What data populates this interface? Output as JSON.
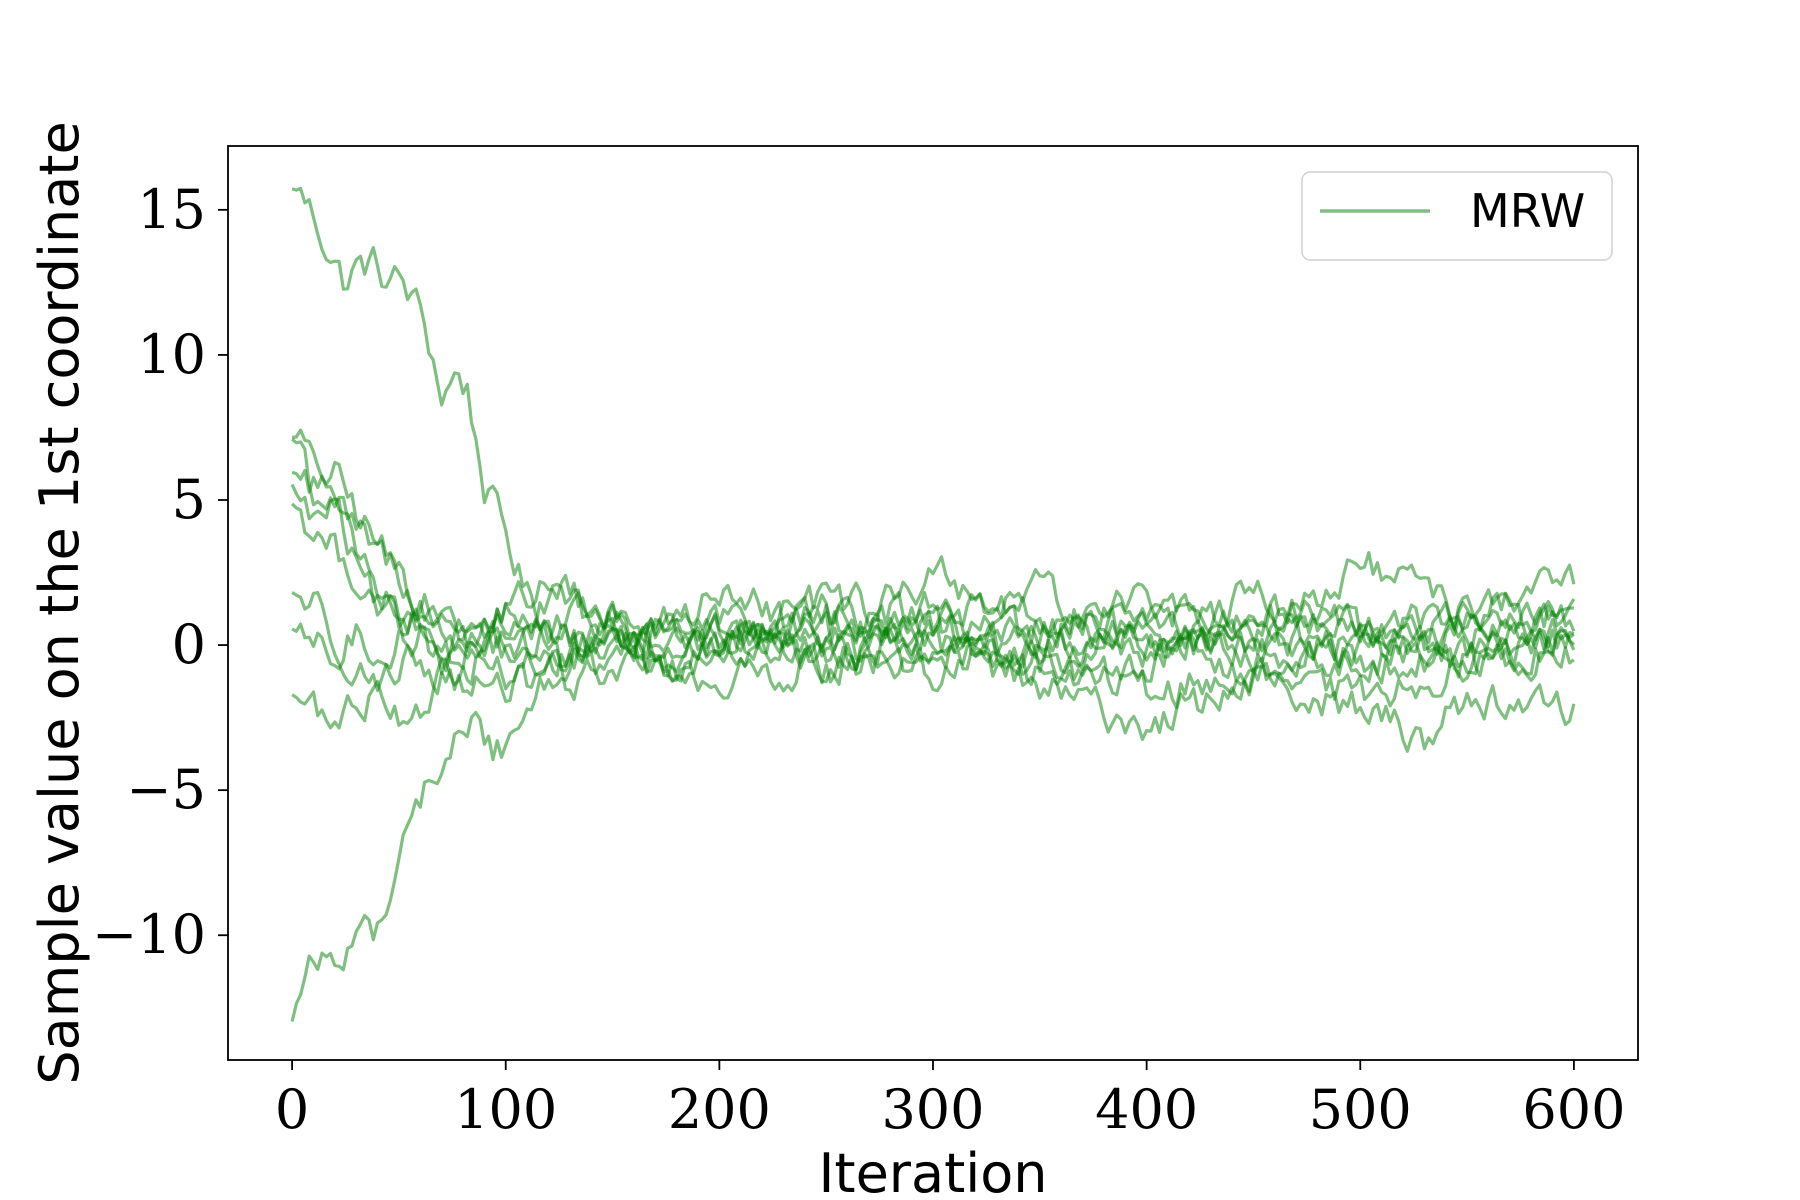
{
  "chart_data": {
    "type": "line",
    "title": "",
    "xlabel": "Iteration",
    "ylabel": "Sample value on the 1st coordinate",
    "xlim": [
      -30,
      630
    ],
    "ylim": [
      -14.3,
      17.2
    ],
    "xticks": [
      0,
      100,
      200,
      300,
      400,
      500,
      600
    ],
    "yticks": [
      -10,
      -5,
      0,
      5,
      10,
      15
    ],
    "xtick_labels": [
      "0",
      "100",
      "200",
      "300",
      "400",
      "500",
      "600"
    ],
    "ytick_labels": [
      "−10",
      "−5",
      "0",
      "5",
      "10",
      "15"
    ],
    "grid": false,
    "legend": {
      "position": "top-right",
      "entries": [
        "MRW"
      ]
    },
    "line_color": "#008000",
    "line_opacity": 0.5,
    "series_count": 10,
    "series": [
      {
        "start": 15.7,
        "x": [
          0,
          3,
          10,
          20,
          25,
          30,
          38,
          45,
          50,
          60,
          65,
          70,
          78,
          82,
          90,
          100,
          110,
          120,
          130,
          150,
          175,
          200,
          250,
          300,
          350,
          400,
          450,
          500,
          550,
          600
        ],
        "values": [
          15.7,
          15.7,
          14.8,
          13.2,
          12.4,
          13.0,
          13.1,
          12.5,
          12.6,
          11.5,
          10.2,
          8.6,
          9.4,
          8.8,
          5.5,
          3.8,
          1.7,
          0.9,
          -1.2,
          -0.8,
          0.6,
          0.2,
          1.0,
          -0.4,
          0.5,
          0.9,
          -0.2,
          0.1,
          -0.6,
          0.4
        ]
      },
      {
        "start": 7.2,
        "x": [
          0,
          5,
          10,
          20,
          30,
          40,
          50,
          60,
          70,
          80,
          100,
          120,
          150,
          175,
          200,
          250,
          300,
          350,
          400,
          450,
          500,
          550,
          600
        ],
        "values": [
          7.2,
          7.1,
          6.0,
          5.8,
          4.6,
          3.5,
          2.4,
          1.6,
          0.8,
          0.3,
          -0.2,
          -0.8,
          0.5,
          -1.0,
          0.2,
          -0.3,
          0.6,
          -0.7,
          0.4,
          -0.2,
          0.8,
          -0.5,
          0.1
        ]
      },
      {
        "start": 7.1,
        "x": [
          0,
          5,
          10,
          20,
          30,
          40,
          50,
          60,
          70,
          80,
          100,
          125,
          150,
          175,
          200,
          250,
          300,
          350,
          400,
          450,
          500,
          550,
          600
        ],
        "values": [
          7.1,
          6.8,
          5.2,
          5.0,
          3.8,
          3.1,
          2.6,
          1.2,
          0.4,
          -0.2,
          0.6,
          1.5,
          0.3,
          1.0,
          -0.4,
          0.7,
          1.2,
          1.8,
          0.1,
          1.2,
          0.3,
          0.8,
          2.3
        ]
      },
      {
        "start": 5.5,
        "x": [
          0,
          10,
          20,
          30,
          40,
          50,
          60,
          80,
          100,
          120,
          150,
          175,
          200,
          250,
          300,
          350,
          400,
          450,
          500,
          550,
          600
        ],
        "values": [
          5.5,
          4.2,
          4.8,
          2.5,
          1.3,
          0.5,
          -0.6,
          -1.2,
          -1.6,
          -1.0,
          0.2,
          -0.8,
          -1.2,
          -0.6,
          0.2,
          -1.5,
          -2.8,
          -1.2,
          -1.8,
          -0.6,
          -0.3
        ]
      },
      {
        "start": 4.9,
        "x": [
          0,
          10,
          20,
          30,
          40,
          50,
          60,
          70,
          80,
          100,
          125,
          150,
          175,
          200,
          250,
          300,
          350,
          400,
          450,
          500,
          530,
          550,
          600
        ],
        "values": [
          4.9,
          4.0,
          3.2,
          2.5,
          1.5,
          0.8,
          0.3,
          -0.3,
          -0.6,
          -1.0,
          0.6,
          1.2,
          -0.5,
          0.5,
          -1.0,
          -0.2,
          -0.5,
          -1.6,
          -1.0,
          -2.2,
          -3.2,
          -1.8,
          -2.2
        ]
      },
      {
        "start": 1.8,
        "x": [
          0,
          10,
          20,
          30,
          40,
          50,
          60,
          75,
          90,
          100,
          120,
          150,
          175,
          200,
          250,
          300,
          350,
          400,
          450,
          500,
          550,
          600
        ],
        "values": [
          1.8,
          1.5,
          0.3,
          -0.6,
          -1.5,
          0.5,
          1.0,
          0.2,
          0.6,
          1.0,
          0.4,
          -0.3,
          0.5,
          1.8,
          0.3,
          2.5,
          0.8,
          1.5,
          0.4,
          2.8,
          1.0,
          0.6
        ]
      },
      {
        "start": 0.5,
        "x": [
          0,
          10,
          20,
          30,
          40,
          50,
          60,
          75,
          100,
          125,
          150,
          175,
          200,
          250,
          300,
          350,
          400,
          450,
          500,
          550,
          600
        ],
        "values": [
          0.5,
          0.0,
          -0.5,
          0.3,
          -0.2,
          -0.6,
          0.1,
          -0.4,
          1.2,
          2.3,
          0.3,
          -0.6,
          0.4,
          1.1,
          0.2,
          -1.2,
          -0.5,
          0.8,
          -0.3,
          0.5,
          -0.1
        ]
      },
      {
        "start": -1.7,
        "x": [
          0,
          10,
          20,
          30,
          40,
          50,
          60,
          70,
          80,
          100,
          120,
          150,
          175,
          200,
          250,
          300,
          350,
          400,
          450,
          500,
          550,
          600
        ],
        "values": [
          -1.7,
          -2.2,
          -2.8,
          -2.0,
          -1.5,
          -2.2,
          -2.0,
          -1.3,
          -0.8,
          -0.2,
          0.5,
          -1.0,
          1.2,
          0.4,
          -0.6,
          0.4,
          -0.2,
          0.6,
          -1.0,
          -0.5,
          -0.3,
          0.4
        ]
      },
      {
        "start": -13.0,
        "x": [
          0,
          3,
          8,
          15,
          20,
          25,
          30,
          40,
          45,
          50,
          55,
          60,
          65,
          70,
          75,
          80,
          85,
          90,
          95,
          100,
          110,
          125,
          150,
          175,
          200,
          250,
          300,
          350,
          400,
          450,
          500,
          550,
          600
        ],
        "values": [
          -13.0,
          -12.0,
          -11.2,
          -10.8,
          -10.5,
          -10.6,
          -10.0,
          -9.8,
          -8.3,
          -7.3,
          -6.4,
          -5.5,
          -4.5,
          -4.2,
          -3.5,
          -3.0,
          -2.6,
          -3.2,
          -3.7,
          -3.4,
          -2.0,
          -0.6,
          0.5,
          -0.3,
          0.8,
          0.2,
          -1.0,
          0.5,
          -0.4,
          0.6,
          -0.8,
          0.3,
          1.2
        ]
      },
      {
        "start": 6.0,
        "x": [
          0,
          10,
          20,
          30,
          40,
          50,
          60,
          70,
          80,
          100,
          125,
          150,
          175,
          200,
          250,
          300,
          350,
          400,
          450,
          500,
          550,
          600
        ],
        "values": [
          6.0,
          5.5,
          5.2,
          3.6,
          2.3,
          1.4,
          0.6,
          -0.5,
          0.9,
          0.0,
          -0.7,
          0.9,
          -0.5,
          0.3,
          1.5,
          0.8,
          0.0,
          0.6,
          1.8,
          0.4,
          1.2,
          0.9
        ]
      }
    ]
  }
}
